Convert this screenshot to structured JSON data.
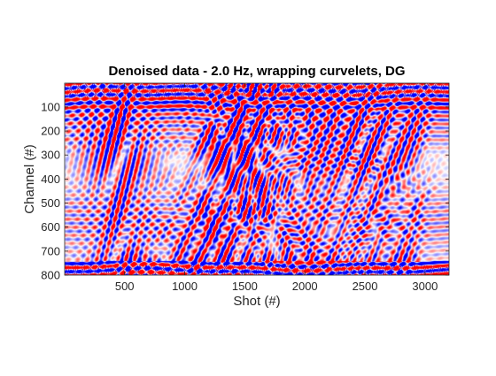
{
  "chart_data": {
    "type": "heatmap",
    "title": "Denoised data - 2.0 Hz, wrapping curvelets, DG",
    "xlabel": "Shot (#)",
    "ylabel": "Channel (#)",
    "xlim": [
      1,
      3200
    ],
    "ylim": [
      800,
      1
    ],
    "y_reversed": true,
    "x_ticks": [
      500,
      1000,
      1500,
      2000,
      2500,
      3000
    ],
    "x_tick_labels": [
      "500",
      "1000",
      "1500",
      "2000",
      "2500",
      "3000"
    ],
    "y_ticks": [
      100,
      200,
      300,
      400,
      500,
      600,
      700,
      800
    ],
    "y_tick_labels": [
      "100",
      "200",
      "300",
      "400",
      "500",
      "600",
      "700",
      "800"
    ],
    "colormap": "blue-white-red",
    "colors": {
      "negative": "#0000ff",
      "zero": "#ffffff",
      "positive": "#ff0000"
    },
    "grid": false,
    "legend": "none"
  }
}
